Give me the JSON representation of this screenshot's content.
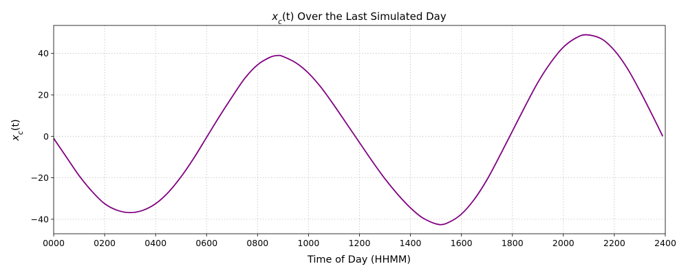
{
  "chart_data": {
    "type": "line",
    "title_main": "x",
    "title_sub": "c",
    "title_rest": "(t) Over the Last Simulated Day",
    "xlabel": "Time of Day (HHMM)",
    "ylabel_main": "x",
    "ylabel_sub": "c",
    "ylabel_rest": "(t)",
    "xlim": [
      0,
      2400
    ],
    "ylim": [
      -47,
      53.5
    ],
    "x_ticks": [
      0,
      200,
      400,
      600,
      800,
      1000,
      1200,
      1400,
      1600,
      1800,
      2000,
      2200,
      2400
    ],
    "x_tick_labels": [
      "0000",
      "0200",
      "0400",
      "0600",
      "0800",
      "1000",
      "1200",
      "1400",
      "1600",
      "1800",
      "2000",
      "2200",
      "2400"
    ],
    "y_ticks": [
      -40,
      -20,
      0,
      20,
      40
    ],
    "y_tick_labels": [
      "−40",
      "−20",
      "0",
      "20",
      "40"
    ],
    "grid": true,
    "series": [
      {
        "color": "#800080",
        "x": [
          0,
          50,
          100,
          150,
          200,
          250,
          300,
          350,
          400,
          450,
          500,
          550,
          600,
          650,
          700,
          750,
          800,
          850,
          880,
          900,
          950,
          1000,
          1050,
          1100,
          1150,
          1200,
          1250,
          1300,
          1350,
          1400,
          1450,
          1510,
          1550,
          1600,
          1650,
          1700,
          1750,
          1800,
          1850,
          1900,
          1950,
          2000,
          2050,
          2090,
          2150,
          2200,
          2250,
          2300,
          2350,
          2390
        ],
        "y": [
          -1,
          -10,
          -19,
          -26.5,
          -32.5,
          -35.7,
          -36.8,
          -35.7,
          -32.5,
          -27,
          -19.5,
          -10.5,
          -0.5,
          9.5,
          19,
          28,
          34.5,
          38.2,
          39,
          38.5,
          35.5,
          30.5,
          23.5,
          15,
          6,
          -3,
          -12,
          -20.5,
          -28,
          -34.5,
          -39.5,
          -42.5,
          -41.5,
          -37.5,
          -30.5,
          -21,
          -9.5,
          2.5,
          14.5,
          26,
          35.5,
          43,
          47.5,
          49,
          47,
          41.5,
          33,
          22,
          10,
          0
        ]
      }
    ]
  }
}
